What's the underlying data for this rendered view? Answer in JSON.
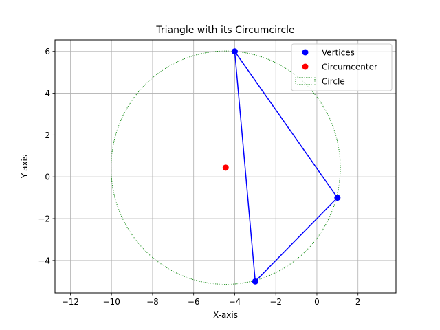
{
  "chart_data": {
    "type": "scatter",
    "title": "Triangle with its Circumcircle",
    "xlabel": "X-axis",
    "ylabel": "Y-axis",
    "xlim": [
      -12.75,
      3.85
    ],
    "ylim": [
      -5.55,
      6.55
    ],
    "grid": true,
    "legend_position": "top-right",
    "x_ticks": [
      -12,
      -10,
      -8,
      -6,
      -4,
      -2,
      0,
      2
    ],
    "y_ticks": [
      -4,
      -2,
      0,
      2,
      4,
      6
    ],
    "x_tick_labels": [
      "−12",
      "−10",
      "−8",
      "−6",
      "−4",
      "−2",
      "0",
      "2"
    ],
    "y_tick_labels": [
      "−4",
      "−2",
      "0",
      "2",
      "4",
      "6"
    ],
    "vertices": {
      "name": "Vertices",
      "color": "#0000ff",
      "points": [
        [
          -4,
          6
        ],
        [
          1,
          -1
        ],
        [
          -3,
          -5
        ]
      ]
    },
    "circumcenter": {
      "name": "Circumcenter",
      "color": "#ff0000",
      "point": [
        -4.44,
        0.44
      ]
    },
    "circle": {
      "name": "Circle",
      "color": "#008000",
      "center": [
        -4.44,
        0.44
      ],
      "radius": 5.58,
      "linestyle": "dotted"
    },
    "triangle_edges_color": "#0000ff",
    "grid_color": "#b0b0b0"
  }
}
